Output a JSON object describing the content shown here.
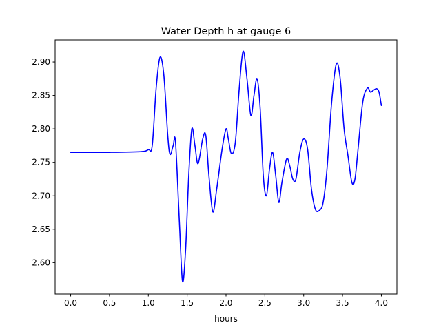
{
  "chart_data": {
    "type": "line",
    "title": "Water Depth h at gauge 6",
    "xlabel": "hours",
    "ylabel": "",
    "xlim": [
      -0.2,
      4.2
    ],
    "ylim": [
      2.553,
      2.933
    ],
    "xticks": [
      0.0,
      0.5,
      1.0,
      1.5,
      2.0,
      2.5,
      3.0,
      3.5,
      4.0
    ],
    "xtick_labels": [
      "0.0",
      "0.5",
      "1.0",
      "1.5",
      "2.0",
      "2.5",
      "3.0",
      "3.5",
      "4.0"
    ],
    "yticks": [
      2.6,
      2.65,
      2.7,
      2.75,
      2.8,
      2.85,
      2.9
    ],
    "ytick_labels": [
      "2.60",
      "2.65",
      "2.70",
      "2.75",
      "2.80",
      "2.85",
      "2.90"
    ],
    "grid": false,
    "legend": "none",
    "series": [
      {
        "color": "#0000ff",
        "x": [
          0.0,
          0.5,
          0.9,
          1.0,
          1.05,
          1.1,
          1.15,
          1.2,
          1.25,
          1.28,
          1.32,
          1.35,
          1.4,
          1.44,
          1.48,
          1.52,
          1.56,
          1.6,
          1.64,
          1.7,
          1.74,
          1.78,
          1.83,
          1.88,
          1.95,
          2.0,
          2.03,
          2.07,
          2.12,
          2.17,
          2.22,
          2.27,
          2.32,
          2.36,
          2.4,
          2.44,
          2.48,
          2.52,
          2.56,
          2.6,
          2.64,
          2.68,
          2.72,
          2.78,
          2.82,
          2.86,
          2.9,
          2.95,
          3.0,
          3.05,
          3.1,
          3.15,
          3.2,
          3.25,
          3.3,
          3.36,
          3.42,
          3.47,
          3.52,
          3.57,
          3.62,
          3.66,
          3.7,
          3.76,
          3.82,
          3.86,
          3.9,
          3.94,
          3.97,
          4.0
        ],
        "y": [
          2.765,
          2.765,
          2.766,
          2.769,
          2.775,
          2.86,
          2.907,
          2.88,
          2.79,
          2.762,
          2.775,
          2.78,
          2.66,
          2.572,
          2.62,
          2.73,
          2.8,
          2.775,
          2.748,
          2.785,
          2.79,
          2.73,
          2.676,
          2.71,
          2.77,
          2.8,
          2.785,
          2.763,
          2.78,
          2.86,
          2.916,
          2.875,
          2.82,
          2.85,
          2.875,
          2.83,
          2.73,
          2.7,
          2.74,
          2.765,
          2.73,
          2.69,
          2.72,
          2.755,
          2.745,
          2.725,
          2.725,
          2.765,
          2.785,
          2.77,
          2.71,
          2.68,
          2.678,
          2.69,
          2.74,
          2.84,
          2.897,
          2.875,
          2.8,
          2.76,
          2.72,
          2.725,
          2.77,
          2.84,
          2.861,
          2.855,
          2.858,
          2.86,
          2.855,
          2.835
        ]
      }
    ]
  }
}
